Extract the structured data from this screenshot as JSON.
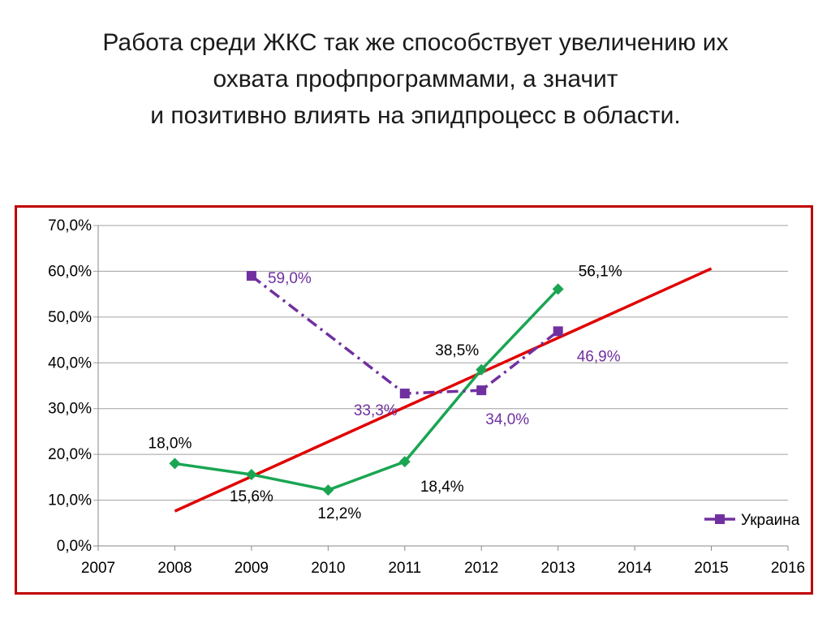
{
  "title_lines": [
    "Работа среди ЖКС так же способствует увеличению их",
    "охвата профпрограммами, а значит",
    "и позитивно влиять на эпидпроцесс в области."
  ],
  "colors": {
    "frame": "#c00000",
    "green": "#1aa552",
    "purple": "#7030a0",
    "trend": "#e00000",
    "grid": "#a0a0a0"
  },
  "chart_data": {
    "type": "line",
    "x_ticks": [
      "2007",
      "2008",
      "2009",
      "2010",
      "2011",
      "2012",
      "2013",
      "2014",
      "2015",
      "2016"
    ],
    "y_ticks": [
      "0,0%",
      "10,0%",
      "20,0%",
      "30,0%",
      "40,0%",
      "50,0%",
      "60,0%",
      "70,0%"
    ],
    "xlim": [
      2007,
      2016
    ],
    "ylim": [
      0,
      70
    ],
    "grid": true,
    "legend_position": "bottom-right",
    "series": [
      {
        "color": "#1aa552",
        "style": "solid",
        "marker": "diamond",
        "x": [
          2008,
          2009,
          2010,
          2011,
          2012,
          2013
        ],
        "y": [
          18.0,
          15.6,
          12.2,
          18.4,
          38.5,
          56.1
        ],
        "labels": [
          "18,0%",
          "15,6%",
          "12,2%",
          "18,4%",
          "38,5%",
          "56,1%"
        ]
      },
      {
        "name": "Украина",
        "color": "#7030a0",
        "style": "dash-dot",
        "marker": "square",
        "x": [
          2009,
          2011,
          2012,
          2013
        ],
        "y": [
          59.0,
          33.3,
          34.0,
          46.9
        ],
        "labels": [
          "59,0%",
          "33,3%",
          "34,0%",
          "46,9%"
        ]
      },
      {
        "color": "#e00000",
        "style": "solid",
        "marker": "none",
        "kind": "trendline",
        "x": [
          2008,
          2015
        ],
        "y": [
          7.6,
          60.6
        ],
        "labels": []
      }
    ]
  }
}
